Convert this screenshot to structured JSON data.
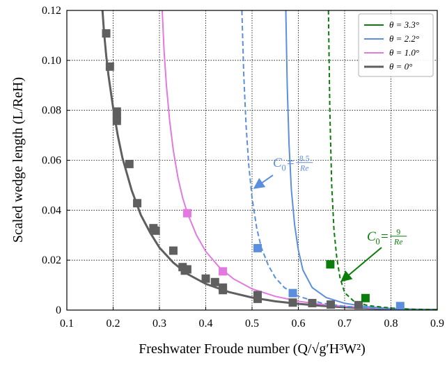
{
  "chart_data": {
    "type": "line",
    "xlabel": "Freshwater Froude number (Q/√g′H³W²)",
    "ylabel": "Scaled wedge length (L/ReH)",
    "xlim": [
      0.1,
      0.9
    ],
    "ylim": [
      0,
      0.12
    ],
    "xticks": [
      "0.1",
      "0.2",
      "0.3",
      "0.4",
      "0.5",
      "0.6",
      "0.7",
      "0.8",
      "0.9"
    ],
    "yticks": [
      "0",
      "0.02",
      "0.04",
      "0.06",
      "0.08",
      "0.10",
      "0.12"
    ],
    "grid": true,
    "legend_position": "top-right",
    "series": [
      {
        "name": "θ = 3.3°",
        "color": "#0a7d0a",
        "curve": {
          "x": [
            0.665,
            0.668,
            0.672,
            0.677,
            0.683,
            0.69,
            0.7,
            0.72,
            0.75,
            0.8,
            0.85,
            0.9
          ],
          "y": [
            0.12,
            0.08,
            0.05,
            0.032,
            0.021,
            0.013,
            0.007,
            0.0035,
            0.0018,
            0.0008,
            0.0003,
            0.0001
          ]
        },
        "curve_style": "dashed",
        "points": {
          "x": [
            0.669,
            0.745
          ],
          "y": [
            0.0183,
            0.0048
          ]
        }
      },
      {
        "name": "θ = 2.2°",
        "color": "#5b8fde",
        "curve": {
          "x": [
            0.573,
            0.576,
            0.58,
            0.585,
            0.592,
            0.6,
            0.61,
            0.63,
            0.66,
            0.7,
            0.75,
            0.8,
            0.85,
            0.9
          ],
          "y": [
            0.12,
            0.09,
            0.066,
            0.048,
            0.034,
            0.024,
            0.016,
            0.009,
            0.005,
            0.0027,
            0.0013,
            0.0006,
            0.0002,
            0.0001
          ]
        },
        "curve_style": "solid",
        "dashed_curve": {
          "x": [
            0.478,
            0.482,
            0.487,
            0.493,
            0.5,
            0.51,
            0.52,
            0.535,
            0.55,
            0.57,
            0.6,
            0.65,
            0.7,
            0.75,
            0.8,
            0.85,
            0.9
          ],
          "y": [
            0.12,
            0.095,
            0.074,
            0.058,
            0.045,
            0.033,
            0.025,
            0.018,
            0.013,
            0.009,
            0.0055,
            0.0028,
            0.0015,
            0.0008,
            0.0004,
            0.0002,
            0.0001
          ]
        },
        "points": {
          "x": [
            0.512,
            0.588,
            0.82
          ],
          "y": [
            0.0248,
            0.0068,
            0.0016
          ]
        }
      },
      {
        "name": "θ = 1.0°",
        "color": "#e278e0",
        "curve": {
          "x": [
            0.306,
            0.31,
            0.315,
            0.322,
            0.33,
            0.34,
            0.35,
            0.36,
            0.38,
            0.4,
            0.43,
            0.46,
            0.5,
            0.55,
            0.6,
            0.65,
            0.7,
            0.75,
            0.8,
            0.85,
            0.9
          ],
          "y": [
            0.12,
            0.104,
            0.09,
            0.076,
            0.064,
            0.053,
            0.045,
            0.039,
            0.03,
            0.0235,
            0.017,
            0.0125,
            0.0085,
            0.0055,
            0.0035,
            0.0023,
            0.0015,
            0.0009,
            0.0005,
            0.0003,
            0.0001
          ]
        },
        "curve_style": "solid",
        "points": {
          "x": [
            0.36,
            0.437
          ],
          "y": [
            0.0388,
            0.0155
          ]
        }
      },
      {
        "name": "θ = 0°",
        "color": "#5f5f5f",
        "curve": {
          "x": [
            0.177,
            0.18,
            0.185,
            0.19,
            0.2,
            0.21,
            0.22,
            0.24,
            0.26,
            0.28,
            0.3,
            0.33,
            0.36,
            0.4,
            0.45,
            0.5,
            0.55,
            0.6,
            0.65,
            0.7,
            0.75,
            0.8,
            0.85,
            0.9
          ],
          "y": [
            0.12,
            0.112,
            0.102,
            0.094,
            0.081,
            0.07,
            0.061,
            0.048,
            0.038,
            0.031,
            0.025,
            0.019,
            0.0145,
            0.0105,
            0.0072,
            0.005,
            0.0035,
            0.0025,
            0.0017,
            0.0011,
            0.0007,
            0.0004,
            0.0002,
            0.0001
          ]
        },
        "curve_style": "solid",
        "points": {
          "x": [
            0.185,
            0.193,
            0.208,
            0.208,
            0.208,
            0.235,
            0.252,
            0.287,
            0.292,
            0.33,
            0.35,
            0.36,
            0.355,
            0.4,
            0.42,
            0.437,
            0.437,
            0.512,
            0.512,
            0.588,
            0.63,
            0.67,
            0.73
          ],
          "y": [
            0.1108,
            0.0975,
            0.0795,
            0.0775,
            0.0758,
            0.0585,
            0.0428,
            0.0328,
            0.0318,
            0.0238,
            0.0172,
            0.0163,
            0.0158,
            0.0126,
            0.0112,
            0.009,
            0.008,
            0.006,
            0.0045,
            0.003,
            0.0028,
            0.0022,
            0.002
          ]
        }
      }
    ],
    "annotations": [
      {
        "label": "C0=8.5/Re",
        "x": 0.54,
        "y": 0.06,
        "arrow_to": [
          0.5,
          0.046
        ],
        "color": "#5b8fde"
      },
      {
        "label": "C0=9/Re",
        "x": 0.78,
        "y": 0.027,
        "arrow_to": [
          0.69,
          0.011
        ],
        "color": "#0a7d0a"
      }
    ]
  },
  "annotation_text": {
    "c0_symbol": "C",
    "c0_sub": "0",
    "eq": "=",
    "blue_num": "8.5",
    "green_num": "9",
    "den": "Re"
  }
}
